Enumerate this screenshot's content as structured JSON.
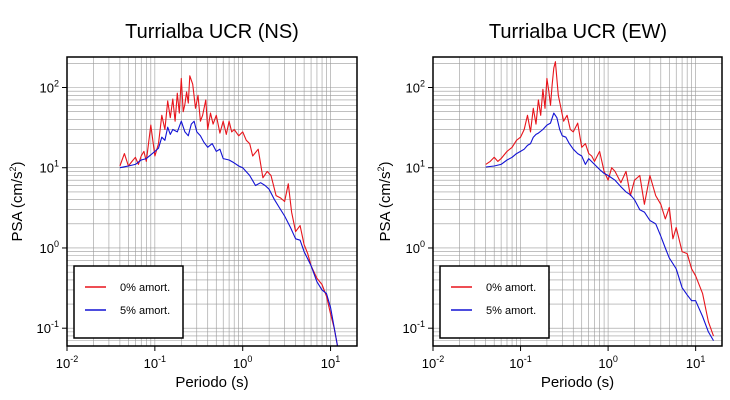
{
  "chart_data": [
    {
      "type": "line",
      "title": "Turrialba UCR (NS)",
      "xlabel": "Periodo (s)",
      "ylabel": "PSA (cm/s²)",
      "ylabel_parts": {
        "main": "PSA (cm/s",
        "sup": "2",
        "end": ")"
      },
      "xscale": "log",
      "yscale": "log",
      "xlim": [
        0.01,
        20
      ],
      "ylim": [
        0.06,
        240
      ],
      "xticks": [
        0.01,
        0.1,
        1,
        10
      ],
      "yticks": [
        0.1,
        1,
        10,
        100
      ],
      "tick_base": "10",
      "xtick_exps": [
        "-2",
        "-1",
        "0",
        "1"
      ],
      "ytick_exps": [
        "-1",
        "0",
        "1",
        "2"
      ],
      "grid": true,
      "legend": "bottom-left",
      "series": [
        {
          "name": "0% amort.",
          "color": "#e8141b",
          "x": [
            0.04,
            0.045,
            0.05,
            0.055,
            0.06,
            0.065,
            0.07,
            0.075,
            0.08,
            0.09,
            0.1,
            0.11,
            0.12,
            0.13,
            0.14,
            0.15,
            0.16,
            0.17,
            0.18,
            0.19,
            0.2,
            0.21,
            0.22,
            0.23,
            0.24,
            0.25,
            0.27,
            0.29,
            0.31,
            0.33,
            0.35,
            0.38,
            0.4,
            0.43,
            0.46,
            0.5,
            0.55,
            0.6,
            0.65,
            0.7,
            0.75,
            0.8,
            0.9,
            1.0,
            1.1,
            1.2,
            1.3,
            1.5,
            1.7,
            1.9,
            2.1,
            2.4,
            2.7,
            3.0,
            3.3,
            3.6,
            4.0,
            4.5,
            5.0,
            5.5,
            6.0,
            7.0,
            8.0,
            9.0,
            10.0,
            11.0,
            12.0
          ],
          "y": [
            10.5,
            15,
            10.5,
            12,
            13.5,
            11,
            14,
            16,
            12,
            34,
            14,
            20,
            45,
            30,
            68,
            42,
            72,
            38,
            85,
            48,
            130,
            50,
            62,
            88,
            64,
            140,
            110,
            55,
            80,
            38,
            45,
            70,
            30,
            48,
            35,
            45,
            27,
            38,
            26,
            38,
            28,
            30,
            25,
            28,
            22,
            20,
            14,
            17,
            7.5,
            9,
            8,
            4.5,
            4.2,
            3.8,
            6.3,
            2.8,
            1.6,
            1.9,
            1.1,
            0.85,
            0.6,
            0.42,
            0.35,
            0.25,
            0.15,
            0.1,
            0.06
          ]
        },
        {
          "name": "5% amort.",
          "color": "#1212d4",
          "x": [
            0.04,
            0.05,
            0.06,
            0.07,
            0.08,
            0.09,
            0.1,
            0.11,
            0.12,
            0.13,
            0.14,
            0.15,
            0.16,
            0.18,
            0.2,
            0.22,
            0.24,
            0.26,
            0.28,
            0.3,
            0.33,
            0.36,
            0.4,
            0.45,
            0.5,
            0.55,
            0.6,
            0.7,
            0.8,
            0.9,
            1.0,
            1.2,
            1.4,
            1.6,
            1.8,
            2.0,
            2.3,
            2.6,
            3.0,
            3.5,
            4.0,
            4.5,
            5.0,
            6.0,
            7.0,
            8.0,
            9.0,
            10.0,
            12.0
          ],
          "y": [
            10,
            10.5,
            11,
            12.5,
            13,
            14.5,
            16,
            17.5,
            24,
            22,
            32,
            26,
            30,
            28,
            38,
            28,
            25,
            35,
            38,
            28,
            25,
            21,
            18,
            20,
            16,
            17,
            13,
            12.5,
            11.5,
            10.5,
            10,
            8,
            6,
            6.5,
            6,
            5.4,
            4,
            3.2,
            2.5,
            1.8,
            1.3,
            1.25,
            0.9,
            0.6,
            0.38,
            0.3,
            0.27,
            0.18,
            0.06
          ]
        }
      ]
    },
    {
      "type": "line",
      "title": "Turrialba UCR (EW)",
      "xlabel": "Periodo (s)",
      "ylabel": "PSA (cm/s²)",
      "ylabel_parts": {
        "main": "PSA (cm/s",
        "sup": "2",
        "end": ")"
      },
      "xscale": "log",
      "yscale": "log",
      "xlim": [
        0.01,
        20
      ],
      "ylim": [
        0.06,
        240
      ],
      "xticks": [
        0.01,
        0.1,
        1,
        10
      ],
      "yticks": [
        0.1,
        1,
        10,
        100
      ],
      "tick_base": "10",
      "xtick_exps": [
        "-2",
        "-1",
        "0",
        "1"
      ],
      "ytick_exps": [
        "-1",
        "0",
        "1",
        "2"
      ],
      "grid": true,
      "legend": "bottom-left",
      "series": [
        {
          "name": "0% amort.",
          "color": "#e8141b",
          "x": [
            0.04,
            0.045,
            0.05,
            0.055,
            0.06,
            0.07,
            0.08,
            0.09,
            0.1,
            0.11,
            0.12,
            0.13,
            0.14,
            0.15,
            0.16,
            0.17,
            0.18,
            0.19,
            0.2,
            0.21,
            0.22,
            0.23,
            0.24,
            0.25,
            0.27,
            0.29,
            0.31,
            0.34,
            0.37,
            0.4,
            0.45,
            0.5,
            0.55,
            0.6,
            0.65,
            0.7,
            0.8,
            0.9,
            1.0,
            1.1,
            1.2,
            1.4,
            1.6,
            1.8,
            2.0,
            2.3,
            2.6,
            3.0,
            3.5,
            4.0,
            4.5,
            5.0,
            5.5,
            6.0,
            7.0,
            8.0,
            9.0,
            10.0,
            12.0,
            14.0,
            16.0
          ],
          "y": [
            11,
            12,
            13.5,
            12,
            13,
            16,
            18,
            22,
            24,
            30,
            45,
            28,
            55,
            35,
            70,
            45,
            95,
            55,
            130,
            90,
            60,
            110,
            175,
            210,
            80,
            55,
            38,
            45,
            30,
            28,
            36,
            18,
            20,
            15,
            14,
            12,
            16,
            9,
            7,
            10,
            9,
            6.5,
            9,
            4.5,
            7,
            8,
            3.5,
            8,
            4.5,
            3.5,
            2.3,
            3.2,
            1.3,
            1.8,
            0.9,
            0.85,
            0.55,
            0.45,
            0.27,
            0.12,
            0.08
          ]
        },
        {
          "name": "5% amort.",
          "color": "#1212d4",
          "x": [
            0.04,
            0.05,
            0.06,
            0.07,
            0.08,
            0.09,
            0.1,
            0.11,
            0.12,
            0.13,
            0.14,
            0.15,
            0.16,
            0.18,
            0.2,
            0.22,
            0.24,
            0.26,
            0.28,
            0.3,
            0.33,
            0.36,
            0.4,
            0.45,
            0.5,
            0.55,
            0.6,
            0.7,
            0.8,
            0.9,
            1.0,
            1.2,
            1.4,
            1.6,
            1.8,
            2.0,
            2.3,
            2.6,
            3.0,
            3.5,
            4.0,
            4.5,
            5.0,
            6.0,
            7.0,
            8.0,
            9.0,
            10.0,
            12.0,
            14.0,
            16.0
          ],
          "y": [
            10.2,
            10.5,
            11,
            12.5,
            13.5,
            15,
            16,
            17,
            19,
            20,
            24,
            26,
            27,
            30,
            34,
            36,
            48,
            42,
            30,
            25,
            24,
            20,
            17,
            15,
            14,
            11,
            13,
            11,
            9.5,
            8.5,
            8,
            7,
            5.8,
            5,
            4.6,
            4,
            3,
            2.8,
            2.2,
            2,
            1.4,
            1,
            0.75,
            0.55,
            0.32,
            0.26,
            0.22,
            0.22,
            0.14,
            0.09,
            0.07
          ]
        }
      ]
    }
  ]
}
